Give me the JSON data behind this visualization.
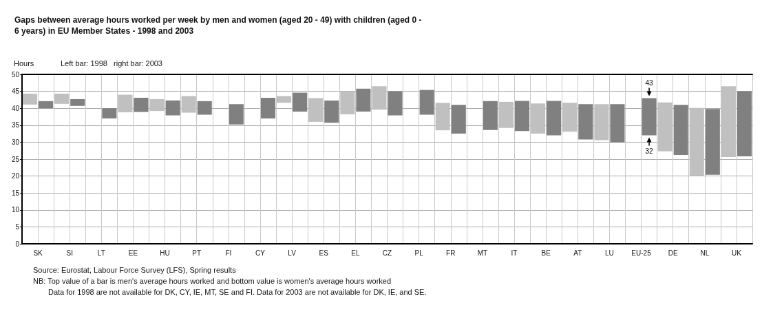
{
  "chart_data": {
    "type": "bar",
    "title": "Gaps between average hours worked per week by men and women (aged 20 - 49) with children (aged 0 - 6 years) in EU Member States - 1998 and 2003",
    "ylabel": "Hours",
    "categories": [
      "SK",
      "SI",
      "LT",
      "EE",
      "HU",
      "PT",
      "FI",
      "CY",
      "LV",
      "ES",
      "EL",
      "CZ",
      "PL",
      "FR",
      "MT",
      "IT",
      "BE",
      "AT",
      "LU",
      "EU-25",
      "DE",
      "NL",
      "UK"
    ],
    "series": [
      {
        "color": "#c0c0c0",
        "base": [
          41.1,
          41.3,
          null,
          38.8,
          39.2,
          38.7,
          null,
          null,
          41.6,
          36.0,
          38.2,
          39.6,
          null,
          33.5,
          null,
          34.2,
          32.5,
          33.1,
          30.6,
          null,
          27.3,
          20.0,
          25.6
        ],
        "values": [
          3.2,
          3.0,
          null,
          5.2,
          3.5,
          4.9,
          null,
          null,
          2.0,
          7.0,
          6.8,
          6.9,
          null,
          8.1,
          null,
          7.7,
          8.9,
          8.5,
          10.6,
          null,
          14.4,
          20.1,
          20.9
        ]
      },
      {
        "color": "#808080",
        "base": [
          40.0,
          40.7,
          37.0,
          38.9,
          37.9,
          38.1,
          35.2,
          37.0,
          39.0,
          35.7,
          39.0,
          37.9,
          38.1,
          32.5,
          33.6,
          33.3,
          32.0,
          30.8,
          29.9,
          32,
          26.2,
          20.4,
          25.8
        ],
        "values": [
          2.1,
          2.0,
          3.0,
          4.2,
          4.4,
          4.0,
          6.0,
          6.1,
          5.6,
          6.6,
          6.8,
          7.1,
          7.3,
          8.5,
          8.5,
          8.9,
          10.2,
          10.4,
          11.3,
          11,
          14.8,
          19.4,
          19.2
        ]
      }
    ],
    "ylim": [
      0,
      50
    ],
    "yticks": [
      0,
      5,
      10,
      15,
      20,
      25,
      30,
      35,
      40,
      45,
      50
    ],
    "grid": true,
    "annotations": [
      "Left bar: 1998   right bar: 2003",
      {
        "text": "43",
        "x": "EU-25",
        "y": 43
      },
      {
        "text": "32",
        "x": "EU-25",
        "y": 32
      },
      "Source: Eurostat, Labour Force Survey (LFS), Spring results",
      "NB: Top value of a bar is men's average hours worked and bottom value is women's average hours worked",
      "Data for 1998 are not available for DK, CY, IE, MT, SE and FI. Data for 2003 are not available for DK, IE, and SE."
    ]
  }
}
